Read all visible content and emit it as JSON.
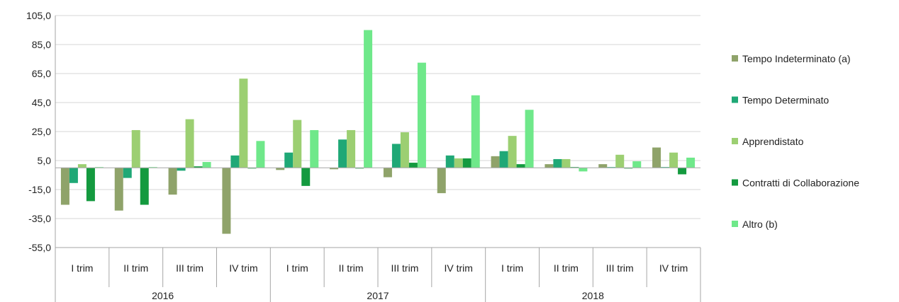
{
  "chart_data": {
    "type": "bar",
    "ylim": [
      -55,
      105
    ],
    "yticks": [
      "105,0",
      "85,0",
      "65,0",
      "45,0",
      "25,0",
      "5,0",
      "-15,0",
      "-35,0",
      "-55,0"
    ],
    "ytick_values": [
      105,
      85,
      65,
      45,
      25,
      5,
      -15,
      -35,
      -55
    ],
    "baseline": 0,
    "categories": [
      "I trim",
      "II trim",
      "III trim",
      "IV trim",
      "I trim",
      "II trim",
      "III trim",
      "IV trim",
      "I trim",
      "II trim",
      "III trim",
      "IV trim"
    ],
    "groups": [
      "2016",
      "2017",
      "2018"
    ],
    "grid": true,
    "legend_position": "right",
    "series": [
      {
        "name": "Tempo Indeterminato (a)",
        "color": "#8fa36a",
        "values": [
          -25.5,
          -29.5,
          -18.5,
          -45.5,
          -1.5,
          -1.0,
          -6.5,
          -17.5,
          8.0,
          2.5,
          2.5,
          14.0
        ]
      },
      {
        "name": "Tempo Determinato",
        "color": "#1fa876",
        "values": [
          -10.5,
          -7.0,
          -2.0,
          8.5,
          10.5,
          19.5,
          16.5,
          8.5,
          11.5,
          6.0,
          0.5,
          0.5
        ]
      },
      {
        "name": "Apprendistato",
        "color": "#9ccf72",
        "values": [
          2.5,
          26.0,
          33.5,
          61.5,
          33.0,
          26.0,
          24.5,
          6.5,
          22.0,
          6.0,
          9.0,
          10.5
        ]
      },
      {
        "name": "Contratti  di Collaborazione",
        "color": "#149a3f",
        "values": [
          -23.0,
          -25.5,
          1.0,
          -0.5,
          -12.5,
          -0.5,
          3.5,
          6.5,
          2.5,
          0.5,
          -0.5,
          -4.5
        ]
      },
      {
        "name": "Altro (b)",
        "color": "#6fe88a",
        "values": [
          0.5,
          0.5,
          4.0,
          18.5,
          26.0,
          95.0,
          72.5,
          50.0,
          40.0,
          -2.5,
          4.5,
          7.0
        ]
      }
    ]
  }
}
